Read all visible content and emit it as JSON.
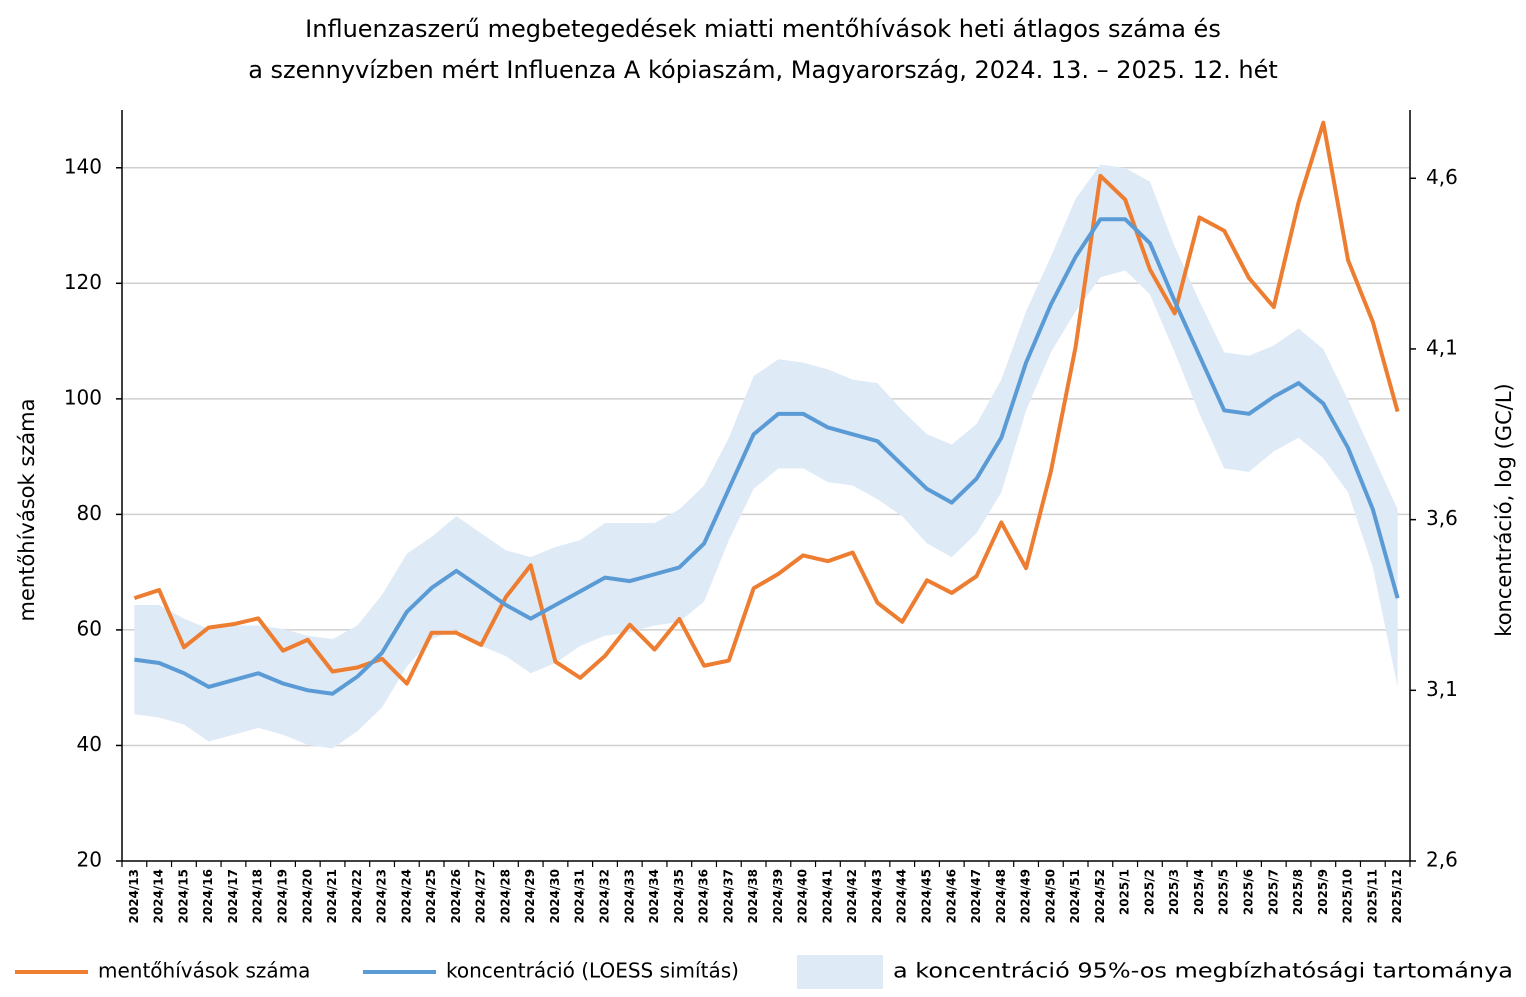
{
  "chart_data": {
    "type": "line",
    "title": [
      "Influenzaszerű megbetegedések miatti mentőhívások heti átlagos száma és",
      "a szennyvízben mért Influenza A kópiaszám, Magyarország, 2024. 13. – 2025. 12. hét"
    ],
    "y_label": "mentőhívások száma",
    "y2_label": "koncentráció, log (GC/L)",
    "categories": [
      "2024/13",
      "2024/14",
      "2024/15",
      "2024/16",
      "2024/17",
      "2024/18",
      "2024/19",
      "2024/20",
      "2024/21",
      "2024/22",
      "2024/23",
      "2024/24",
      "2024/25",
      "2024/26",
      "2024/27",
      "2024/28",
      "2024/29",
      "2024/30",
      "2024/31",
      "2024/32",
      "2024/33",
      "2024/34",
      "2024/35",
      "2024/36",
      "2024/37",
      "2024/38",
      "2024/39",
      "2024/40",
      "2024/41",
      "2024/42",
      "2024/43",
      "2024/44",
      "2024/45",
      "2024/46",
      "2024/47",
      "2024/48",
      "2024/49",
      "2024/50",
      "2024/51",
      "2024/52",
      "2025/1",
      "2025/2",
      "2025/3",
      "2025/4",
      "2025/5",
      "2025/6",
      "2025/7",
      "2025/8",
      "2025/9",
      "2025/10",
      "2025/11",
      "2025/12"
    ],
    "series": [
      {
        "name": "mentőhívások száma",
        "color": "#ed7d31",
        "values": [
          65.5,
          66.9,
          57,
          60.4,
          61,
          62,
          56.4,
          58.3,
          52.8,
          53.5,
          55,
          50.7,
          59.5,
          59.5,
          57.4,
          65.7,
          71.2,
          54.5,
          51.7,
          55.5,
          60.9,
          56.6,
          61.9,
          53.8,
          54.7,
          67.2,
          69.7,
          72.9,
          71.9,
          73.4,
          64.7,
          61.4,
          68.6,
          66.4,
          69.3,
          78.6,
          70.7,
          87.4,
          109,
          138.6,
          134.5,
          122.4,
          114.8,
          131.4,
          129.1,
          120.9,
          115.9,
          134,
          147.8,
          124,
          113.3,
          97.8
        ]
      },
      {
        "name": "koncentráció (LOESS simítás)",
        "color": "#5b9bd5",
        "axis": "y2",
        "values": [
          3.19,
          3.18,
          3.15,
          3.11,
          3.13,
          3.15,
          3.12,
          3.1,
          3.09,
          3.14,
          3.21,
          3.33,
          3.4,
          3.45,
          3.4,
          3.35,
          3.31,
          3.35,
          3.39,
          3.43,
          3.42,
          3.44,
          3.46,
          3.53,
          3.69,
          3.85,
          3.91,
          3.91,
          3.87,
          3.85,
          3.83,
          3.76,
          3.69,
          3.65,
          3.72,
          3.84,
          4.06,
          4.23,
          4.37,
          4.48,
          4.48,
          4.41,
          4.24,
          4.08,
          3.92,
          3.91,
          3.96,
          4.0,
          3.94,
          3.81,
          3.63,
          3.37
        ]
      }
    ],
    "band": {
      "name": "a koncentráció 95%-os megbízhatósági tartománya",
      "color": "#dfeaf7",
      "axis": "y2",
      "upper": [
        3.35,
        3.35,
        3.31,
        3.28,
        3.29,
        3.29,
        3.28,
        3.26,
        3.25,
        3.29,
        3.38,
        3.5,
        3.55,
        3.61,
        3.56,
        3.51,
        3.49,
        3.52,
        3.54,
        3.59,
        3.59,
        3.59,
        3.63,
        3.7,
        3.84,
        4.02,
        4.07,
        4.06,
        4.04,
        4.01,
        4.0,
        3.92,
        3.85,
        3.82,
        3.88,
        4.01,
        4.21,
        4.37,
        4.54,
        4.64,
        4.63,
        4.59,
        4.4,
        4.24,
        4.09,
        4.08,
        4.11,
        4.16,
        4.1,
        3.95,
        3.79,
        3.63
      ],
      "lower": [
        3.03,
        3.02,
        3.0,
        2.95,
        2.97,
        2.99,
        2.97,
        2.94,
        2.93,
        2.98,
        3.05,
        3.17,
        3.25,
        3.28,
        3.23,
        3.2,
        3.15,
        3.18,
        3.23,
        3.26,
        3.27,
        3.29,
        3.3,
        3.36,
        3.54,
        3.69,
        3.75,
        3.75,
        3.71,
        3.7,
        3.66,
        3.61,
        3.53,
        3.49,
        3.56,
        3.68,
        3.92,
        4.09,
        4.21,
        4.31,
        4.33,
        4.26,
        4.09,
        3.91,
        3.75,
        3.74,
        3.8,
        3.84,
        3.78,
        3.68,
        3.46,
        3.11
      ]
    },
    "ylim": [
      20,
      150
    ],
    "yticks": [
      20,
      40,
      60,
      80,
      100,
      120,
      140
    ],
    "y2lim": [
      2.6,
      4.8
    ],
    "y2ticks": [
      {
        "value": 2.6,
        "label": "2,6"
      },
      {
        "value": 3.1,
        "label": "3,1"
      },
      {
        "value": 3.6,
        "label": "3,6"
      },
      {
        "value": 4.1,
        "label": "4,1"
      },
      {
        "value": 4.6,
        "label": "4,6"
      }
    ],
    "grid": true,
    "legend": "bottom"
  }
}
